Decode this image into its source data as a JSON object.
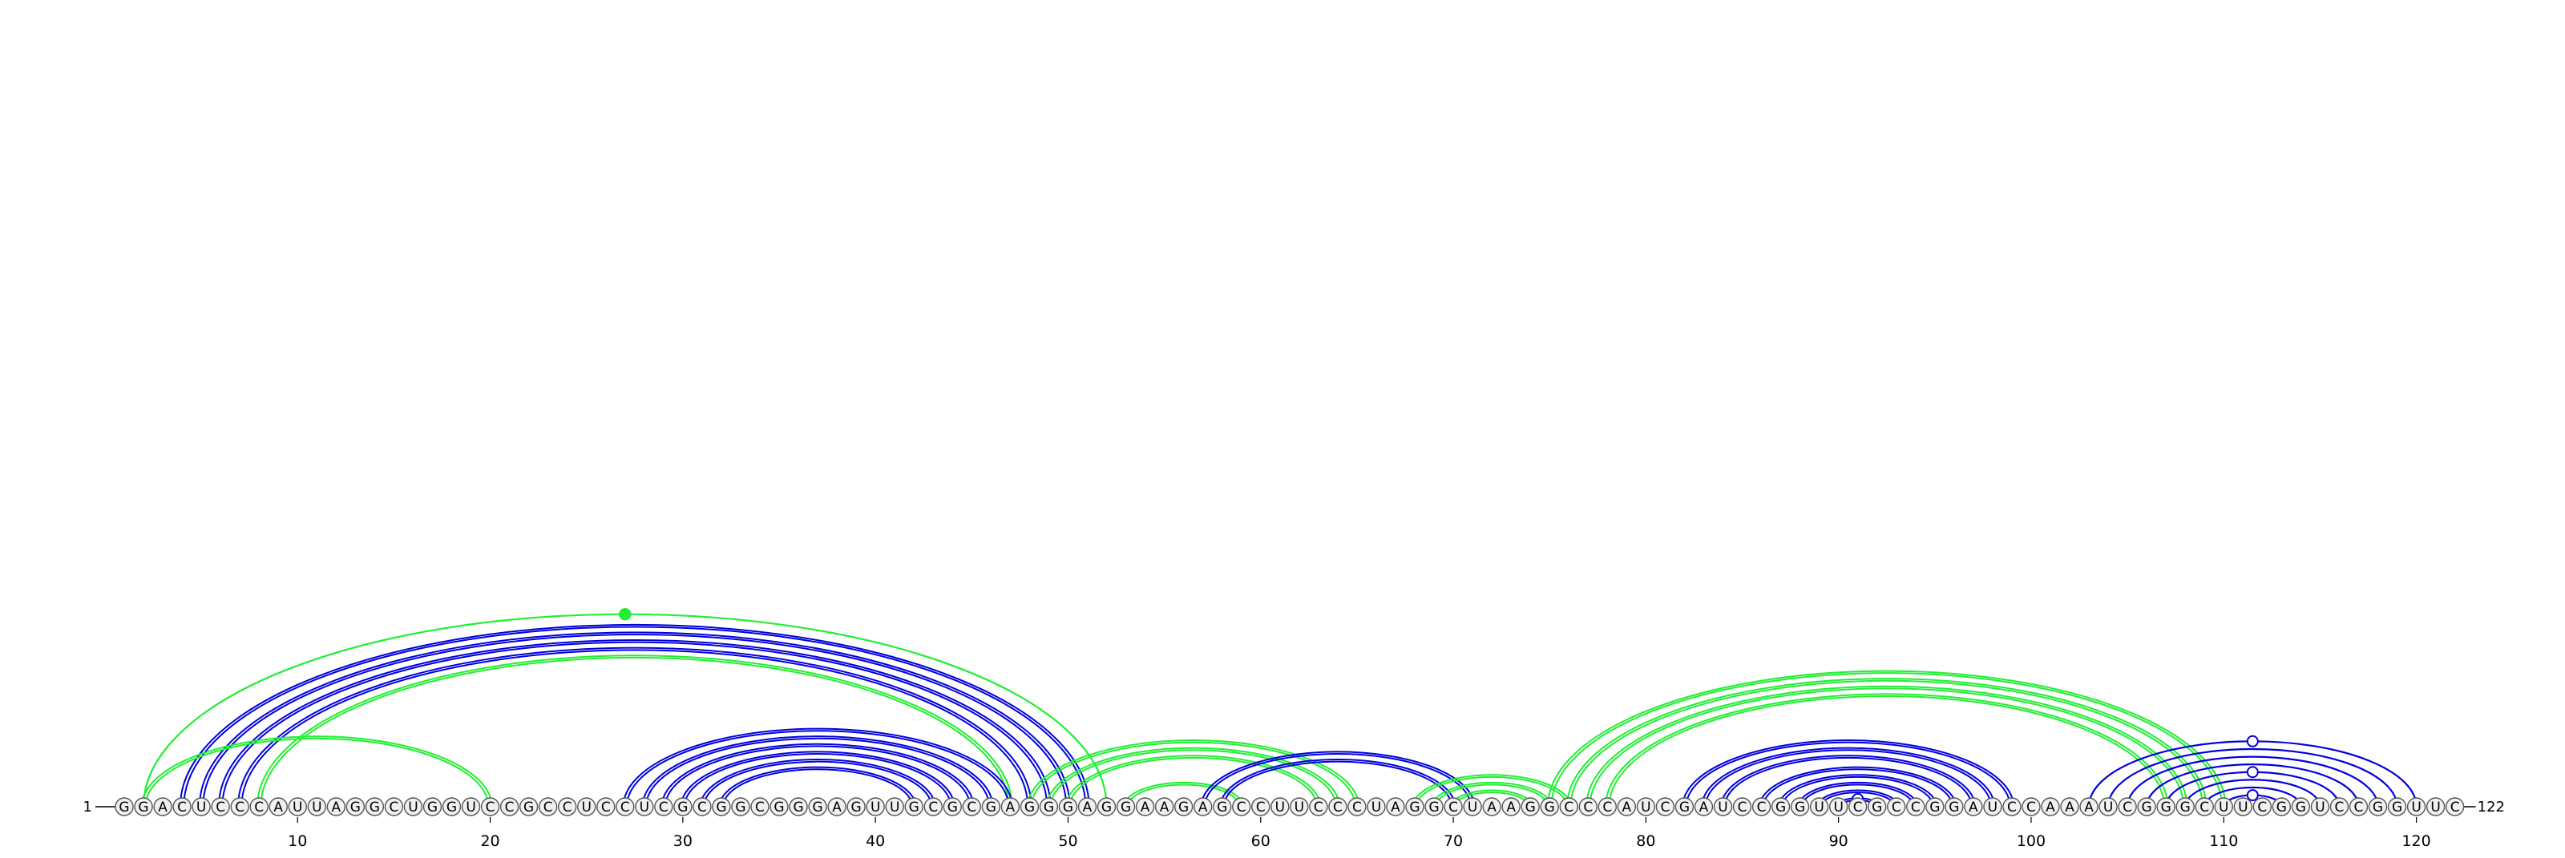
{
  "diagram": {
    "type": "rna-arc-diagram",
    "sequence": "GGACUCCCAUUAGGCUGGUCCGCCUCCUCGCGGCGGGAGUUGCGCGAGGGAGGAAGAGCCUUCCCUAGGCUAAGGCCCAUCGAUCCGGUUCGCCGGAUCCAAAUCGGGCUUCGGUCCGGUUC",
    "start_label": "1",
    "end_label": "122",
    "tick_labels": [
      "10",
      "20",
      "30",
      "40",
      "50",
      "60",
      "70",
      "80",
      "90",
      "100",
      "110",
      "120"
    ],
    "colors": {
      "blue": "#0000dd",
      "green": "#22ee33",
      "nucleotide_fill": "#f0f0f0",
      "nucleotide_stroke": "#555555"
    },
    "arcs": [
      {
        "i": 2,
        "j": 52,
        "color": "green",
        "style": "thin"
      },
      {
        "i": 4,
        "j": 51,
        "color": "blue",
        "style": "double"
      },
      {
        "i": 5,
        "j": 50,
        "color": "blue",
        "style": "double"
      },
      {
        "i": 6,
        "j": 49,
        "color": "blue",
        "style": "double"
      },
      {
        "i": 7,
        "j": 48,
        "color": "blue",
        "style": "double"
      },
      {
        "i": 8,
        "j": 47,
        "color": "green",
        "style": "double"
      },
      {
        "i": 2,
        "j": 20,
        "color": "green",
        "style": "double"
      },
      {
        "i": 27,
        "j": 47,
        "color": "blue",
        "style": "double"
      },
      {
        "i": 28,
        "j": 46,
        "color": "blue",
        "style": "double"
      },
      {
        "i": 29,
        "j": 45,
        "color": "blue",
        "style": "double"
      },
      {
        "i": 30,
        "j": 44,
        "color": "blue",
        "style": "double"
      },
      {
        "i": 31,
        "j": 43,
        "color": "blue",
        "style": "double"
      },
      {
        "i": 32,
        "j": 42,
        "color": "blue",
        "style": "double"
      },
      {
        "i": 48,
        "j": 65,
        "color": "green",
        "style": "double"
      },
      {
        "i": 49,
        "j": 64,
        "color": "green",
        "style": "double"
      },
      {
        "i": 50,
        "j": 63,
        "color": "green",
        "style": "double"
      },
      {
        "i": 53,
        "j": 59,
        "color": "green",
        "style": "double"
      },
      {
        "i": 57,
        "j": 71,
        "color": "blue",
        "style": "double"
      },
      {
        "i": 58,
        "j": 70,
        "color": "blue",
        "style": "double"
      },
      {
        "i": 68,
        "j": 76,
        "color": "green",
        "style": "double"
      },
      {
        "i": 69,
        "j": 75,
        "color": "green",
        "style": "double"
      },
      {
        "i": 70,
        "j": 74,
        "color": "green",
        "style": "double"
      },
      {
        "i": 75,
        "j": 110,
        "color": "green",
        "style": "double"
      },
      {
        "i": 76,
        "j": 109,
        "color": "green",
        "style": "double"
      },
      {
        "i": 77,
        "j": 108,
        "color": "green",
        "style": "double"
      },
      {
        "i": 78,
        "j": 107,
        "color": "green",
        "style": "double"
      },
      {
        "i": 82,
        "j": 99,
        "color": "blue",
        "style": "double"
      },
      {
        "i": 83,
        "j": 98,
        "color": "blue",
        "style": "double"
      },
      {
        "i": 84,
        "j": 97,
        "color": "blue",
        "style": "double"
      },
      {
        "i": 86,
        "j": 96,
        "color": "blue",
        "style": "double"
      },
      {
        "i": 87,
        "j": 95,
        "color": "blue",
        "style": "double"
      },
      {
        "i": 88,
        "j": 94,
        "color": "blue",
        "style": "double"
      },
      {
        "i": 89,
        "j": 93,
        "color": "blue",
        "style": "double"
      },
      {
        "i": 90,
        "j": 92,
        "color": "blue",
        "style": "double"
      },
      {
        "i": 103,
        "j": 120,
        "color": "blue",
        "style": "thin"
      },
      {
        "i": 104,
        "j": 119,
        "color": "blue",
        "style": "thin"
      },
      {
        "i": 105,
        "j": 118,
        "color": "blue",
        "style": "thin"
      },
      {
        "i": 106,
        "j": 117,
        "color": "blue",
        "style": "thin"
      },
      {
        "i": 107,
        "j": 116,
        "color": "blue",
        "style": "thin"
      },
      {
        "i": 108,
        "j": 115,
        "color": "blue",
        "style": "thin"
      },
      {
        "i": 109,
        "j": 114,
        "color": "blue",
        "style": "thin"
      },
      {
        "i": 110,
        "j": 113,
        "color": "blue",
        "style": "thin"
      }
    ],
    "arc_markers": [
      {
        "i": 2,
        "j": 52,
        "type": "filled"
      },
      {
        "i": 90,
        "j": 92,
        "type": "open"
      },
      {
        "i": 103,
        "j": 120,
        "type": "open"
      },
      {
        "i": 107,
        "j": 116,
        "type": "open"
      },
      {
        "i": 110,
        "j": 113,
        "type": "open"
      }
    ]
  }
}
